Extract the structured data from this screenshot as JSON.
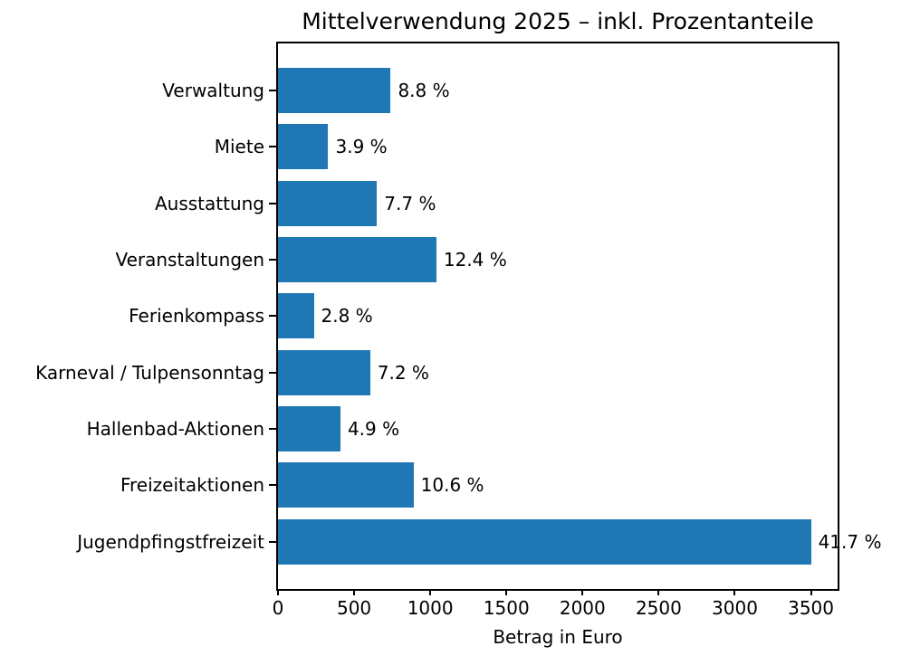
{
  "chart_data": {
    "type": "bar",
    "orientation": "horizontal",
    "title": "Mittelverwendung 2025 – inkl. Prozentanteile",
    "xlabel": "Betrag in Euro",
    "ylabel": "",
    "categories": [
      "Verwaltung",
      "Miete",
      "Ausstattung",
      "Veranstaltungen",
      "Ferienkompass",
      "Karneval / Tulpensonntag",
      "Hallenbad-Aktionen",
      "Freizeitaktionen",
      "Jugendpfingstfreizeit"
    ],
    "values": [
      740,
      330,
      650,
      1040,
      235,
      605,
      410,
      890,
      3500
    ],
    "percent_labels": [
      "8.8 %",
      "3.9 %",
      "7.7 %",
      "12.4 %",
      "2.8 %",
      "7.2 %",
      "4.9 %",
      "10.6 %",
      "41.7 %"
    ],
    "x_ticks": [
      0,
      500,
      1000,
      1500,
      2000,
      2500,
      3000,
      3500
    ],
    "xlim": [
      0,
      3675
    ],
    "bar_color": "#1f77b4",
    "spine_color": "#000000",
    "text_color": "#000000",
    "grid": false,
    "legend": false
  }
}
